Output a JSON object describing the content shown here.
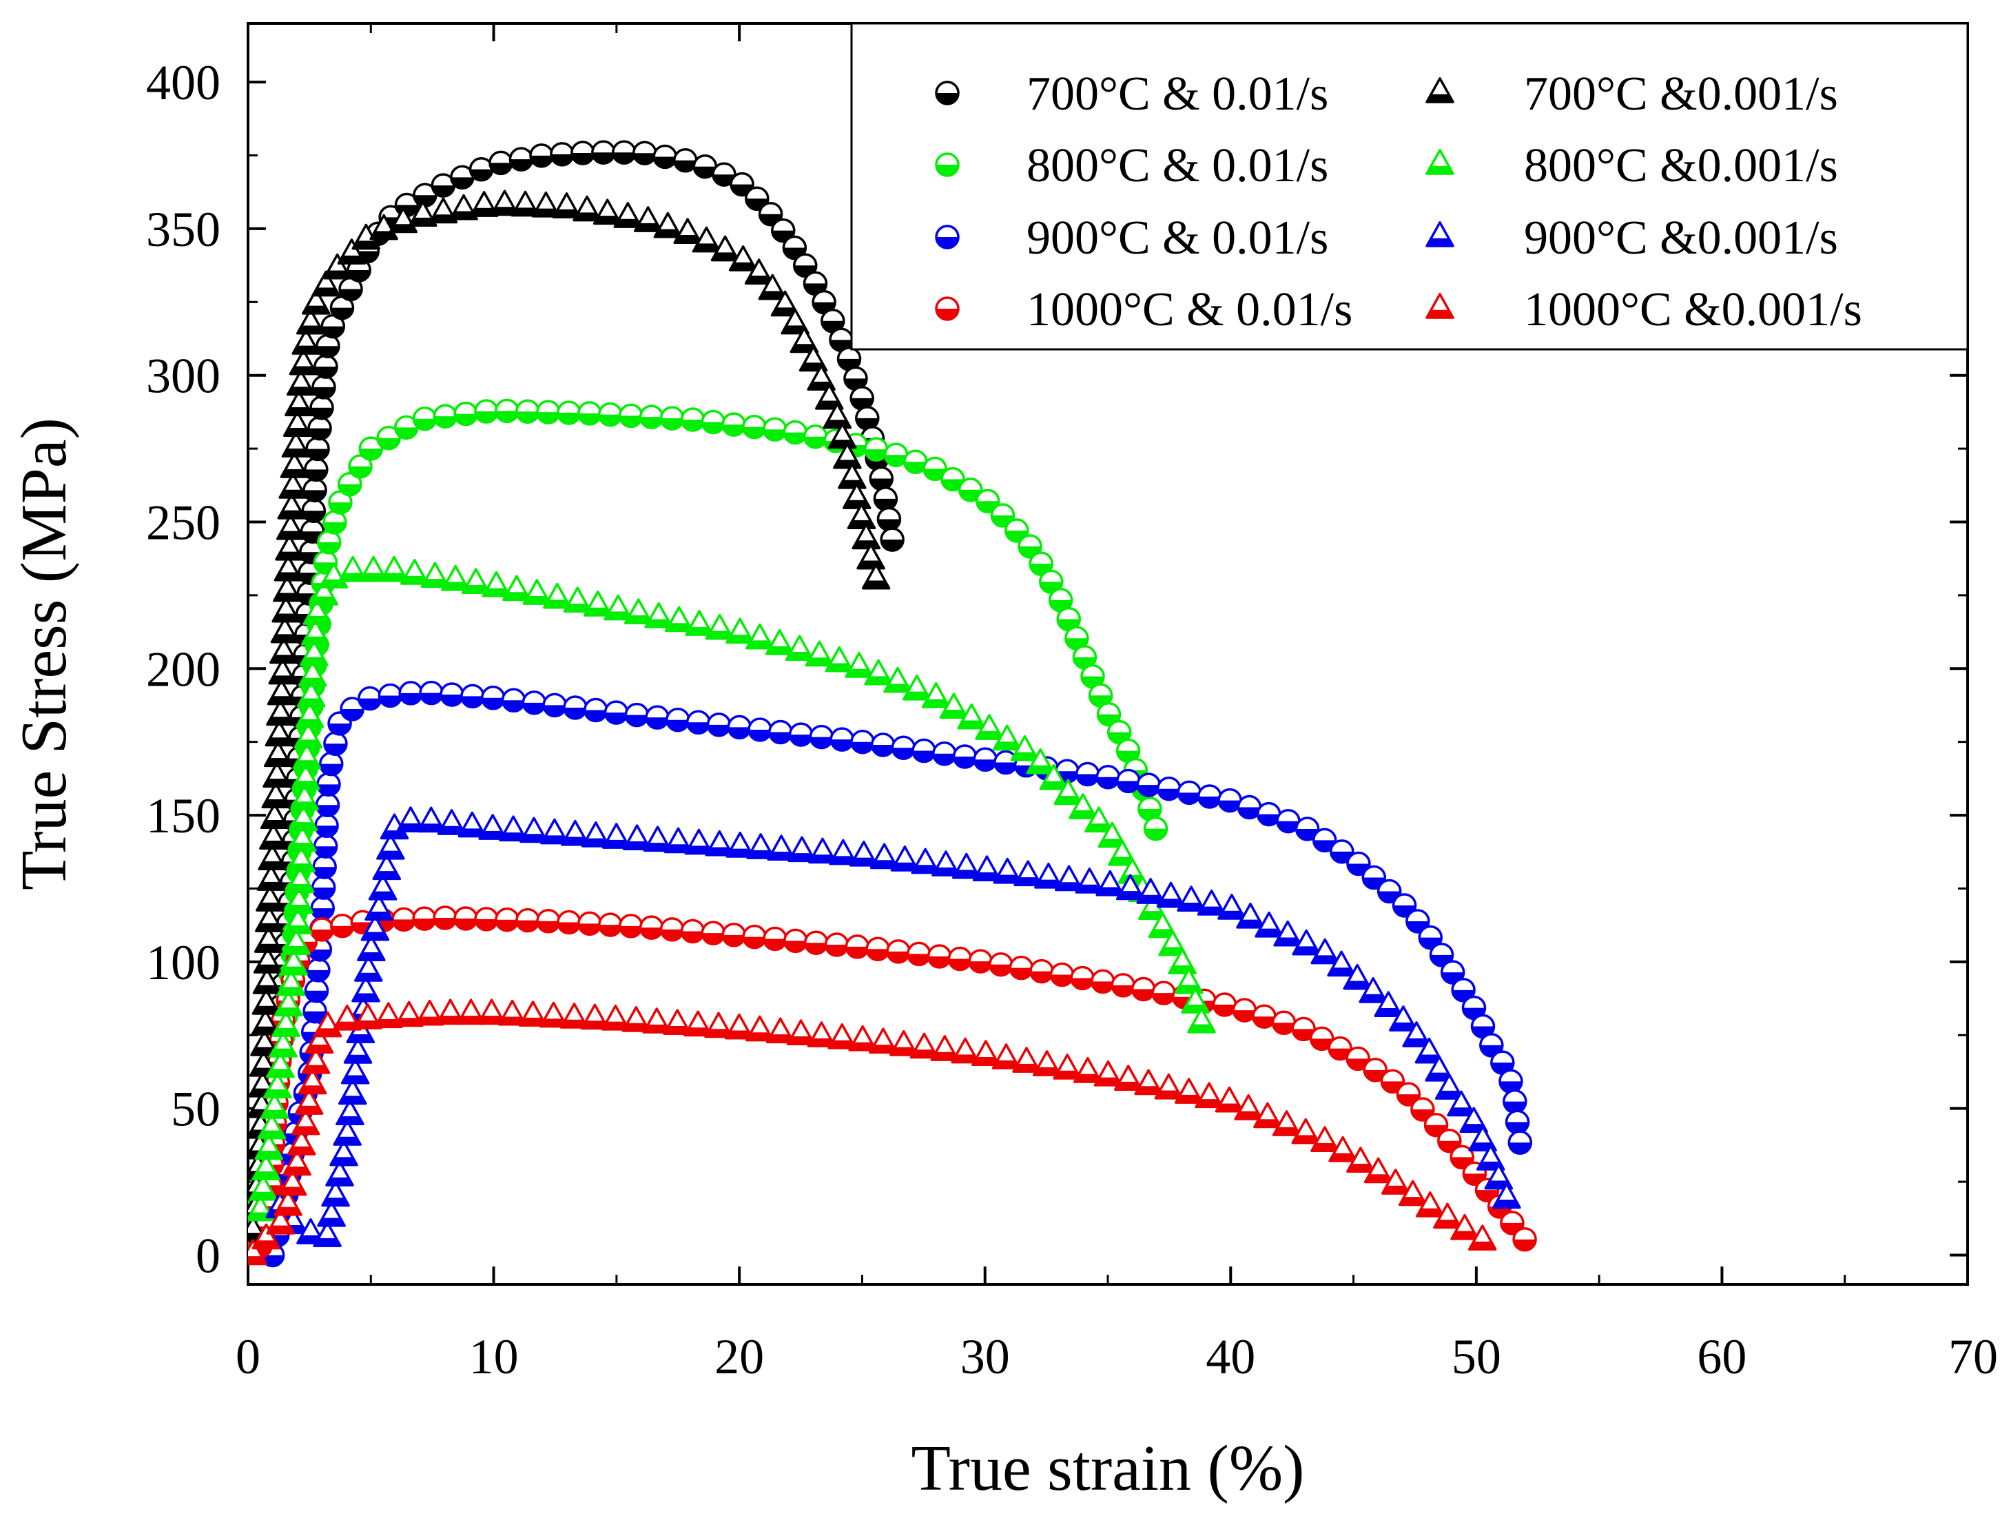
{
  "chart_data": {
    "type": "scatter",
    "title": "",
    "xlabel": "True strain (%)",
    "ylabel": "True Stress (MPa)",
    "xlim": [
      0,
      70
    ],
    "ylim": [
      -10,
      420
    ],
    "xticks": [
      0,
      10,
      20,
      30,
      40,
      50,
      60,
      70
    ],
    "yticks": [
      0,
      50,
      100,
      150,
      200,
      250,
      300,
      350,
      400
    ],
    "grid": false,
    "legend_position": "top-right",
    "series": [
      {
        "name": "700°C & 0.01/s",
        "marker": "circle",
        "color": "#000000",
        "curve": [
          [
            0.3,
            8
          ],
          [
            0.6,
            22
          ],
          [
            0.9,
            45
          ],
          [
            1.3,
            80
          ],
          [
            1.8,
            128
          ],
          [
            2.3,
            200
          ],
          [
            2.8,
            272
          ],
          [
            3.3,
            314
          ],
          [
            4,
            326
          ],
          [
            5,
            345
          ],
          [
            6,
            356
          ],
          [
            8,
            365
          ],
          [
            10,
            372
          ],
          [
            12,
            375
          ],
          [
            14,
            376
          ],
          [
            16,
            376
          ],
          [
            18,
            373
          ],
          [
            19,
            370
          ],
          [
            20,
            366
          ],
          [
            21,
            358
          ],
          [
            22,
            347
          ],
          [
            23,
            333
          ],
          [
            24,
            315
          ],
          [
            24.5,
            305
          ],
          [
            25,
            292
          ],
          [
            25.5,
            276
          ],
          [
            26,
            256
          ],
          [
            26.3,
            240
          ]
        ]
      },
      {
        "name": "800°C & 0.01/s",
        "marker": "circle",
        "color": "#00ee00",
        "curve": [
          [
            0.2,
            5
          ],
          [
            0.5,
            20
          ],
          [
            0.8,
            40
          ],
          [
            1.2,
            62
          ],
          [
            1.5,
            78
          ],
          [
            1.8,
            100
          ],
          [
            2.2,
            150
          ],
          [
            2.7,
            200
          ],
          [
            3.2,
            240
          ],
          [
            3.8,
            258
          ],
          [
            5,
            275
          ],
          [
            7,
            285
          ],
          [
            10,
            288
          ],
          [
            14,
            287
          ],
          [
            18,
            285
          ],
          [
            22,
            281
          ],
          [
            26,
            274
          ],
          [
            28,
            268
          ],
          [
            30,
            258
          ],
          [
            31,
            250
          ],
          [
            32,
            240
          ],
          [
            33,
            225
          ],
          [
            34,
            205
          ],
          [
            35,
            185
          ],
          [
            35.7,
            175
          ],
          [
            36,
            168
          ],
          [
            36.5,
            158
          ],
          [
            37,
            144
          ]
        ]
      },
      {
        "name": "900°C & 0.01/s",
        "marker": "circle",
        "color": "#0000ee",
        "curve": [
          [
            1,
            0
          ],
          [
            1.5,
            17
          ],
          [
            2,
            45
          ],
          [
            2.5,
            60
          ],
          [
            3,
            112
          ],
          [
            3.3,
            164
          ],
          [
            3.8,
            184
          ],
          [
            5,
            190
          ],
          [
            7,
            192
          ],
          [
            10,
            190
          ],
          [
            15,
            185
          ],
          [
            20,
            180
          ],
          [
            25,
            175
          ],
          [
            30,
            169
          ],
          [
            35,
            163
          ],
          [
            40,
            155
          ],
          [
            43,
            146
          ],
          [
            45,
            135
          ],
          [
            47,
            120
          ],
          [
            48,
            110
          ],
          [
            49,
            97
          ],
          [
            50,
            83
          ],
          [
            50.7,
            70
          ],
          [
            51.2,
            64
          ],
          [
            51.5,
            57
          ],
          [
            51.8,
            37
          ]
        ]
      },
      {
        "name": "1000°C & 0.01/s",
        "marker": "circle",
        "color": "#ee0000",
        "curve": [
          [
            0.5,
            3
          ],
          [
            0.8,
            12
          ],
          [
            1,
            35
          ],
          [
            1.4,
            79
          ],
          [
            2.2,
            106
          ],
          [
            3,
            111
          ],
          [
            5,
            114
          ],
          [
            8,
            115
          ],
          [
            12,
            114
          ],
          [
            16,
            112
          ],
          [
            20,
            109
          ],
          [
            25,
            105
          ],
          [
            30,
            100
          ],
          [
            35,
            93
          ],
          [
            40,
            85
          ],
          [
            43,
            77
          ],
          [
            45,
            68
          ],
          [
            47,
            57
          ],
          [
            48,
            48
          ],
          [
            49,
            38
          ],
          [
            50,
            27
          ],
          [
            51,
            16
          ],
          [
            52,
            5
          ],
          [
            52.5,
            0
          ]
        ]
      },
      {
        "name": "700°C &0.001/s",
        "marker": "triangle",
        "color": "#000000",
        "curve": [
          [
            0.2,
            8
          ],
          [
            0.5,
            40
          ],
          [
            0.7,
            76
          ],
          [
            0.9,
            122
          ],
          [
            1.2,
            166
          ],
          [
            1.5,
            212
          ],
          [
            1.8,
            258
          ],
          [
            2.1,
            293
          ],
          [
            2.4,
            313
          ],
          [
            2.8,
            325
          ],
          [
            3.5,
            335
          ],
          [
            5,
            348
          ],
          [
            7,
            354
          ],
          [
            10,
            358
          ],
          [
            13,
            357
          ],
          [
            16,
            353
          ],
          [
            18,
            348
          ],
          [
            20,
            340
          ],
          [
            21,
            333
          ],
          [
            22,
            322
          ],
          [
            23,
            305
          ],
          [
            24,
            285
          ],
          [
            24.5,
            268
          ],
          [
            25,
            250
          ],
          [
            25.5,
            232
          ],
          [
            25.8,
            225
          ]
        ]
      },
      {
        "name": "800°C &0.001/s",
        "marker": "triangle",
        "color": "#00ee00",
        "curve": [
          [
            0.5,
            15
          ],
          [
            1,
            45
          ],
          [
            1.5,
            75
          ],
          [
            2,
            108
          ],
          [
            2.4,
            170
          ],
          [
            2.8,
            218
          ],
          [
            3.3,
            230
          ],
          [
            4,
            233
          ],
          [
            6,
            233
          ],
          [
            10,
            228
          ],
          [
            15,
            220
          ],
          [
            20,
            212
          ],
          [
            25,
            200
          ],
          [
            28,
            190
          ],
          [
            30,
            180
          ],
          [
            32,
            170
          ],
          [
            33,
            160
          ],
          [
            34,
            152
          ],
          [
            35,
            145
          ],
          [
            36,
            130
          ],
          [
            37,
            115
          ],
          [
            38,
            100
          ],
          [
            38.6,
            85
          ],
          [
            39,
            74
          ]
        ]
      },
      {
        "name": "900°C &0.001/s",
        "marker": "triangle",
        "color": "#0000ee",
        "curve": [
          [
            1.3,
            16
          ],
          [
            2,
            9
          ],
          [
            3.2,
            5
          ],
          [
            4,
            38
          ],
          [
            5,
            103
          ],
          [
            6,
            147
          ],
          [
            7,
            148
          ],
          [
            10,
            145
          ],
          [
            15,
            142
          ],
          [
            20,
            139
          ],
          [
            25,
            136
          ],
          [
            30,
            131
          ],
          [
            35,
            126
          ],
          [
            40,
            118
          ],
          [
            42,
            110
          ],
          [
            44,
            102
          ],
          [
            45,
            95
          ],
          [
            46,
            88
          ],
          [
            47,
            80
          ],
          [
            48,
            70
          ],
          [
            49,
            55
          ],
          [
            50,
            44
          ],
          [
            50.5,
            34
          ],
          [
            51.3,
            18
          ]
        ]
      },
      {
        "name": "1000°C &0.001/s",
        "marker": "triangle",
        "color": "#ee0000",
        "curve": [
          [
            0.2,
            0
          ],
          [
            0.8,
            6
          ],
          [
            1.5,
            12
          ],
          [
            2.3,
            42
          ],
          [
            3,
            77
          ],
          [
            4,
            80
          ],
          [
            6,
            81
          ],
          [
            8,
            82
          ],
          [
            10,
            82
          ],
          [
            15,
            80
          ],
          [
            20,
            77
          ],
          [
            25,
            73
          ],
          [
            30,
            68
          ],
          [
            35,
            61
          ],
          [
            40,
            52
          ],
          [
            42,
            45
          ],
          [
            44,
            38
          ],
          [
            46,
            28
          ],
          [
            48,
            17
          ],
          [
            50,
            6
          ],
          [
            51,
            2
          ]
        ]
      }
    ]
  }
}
